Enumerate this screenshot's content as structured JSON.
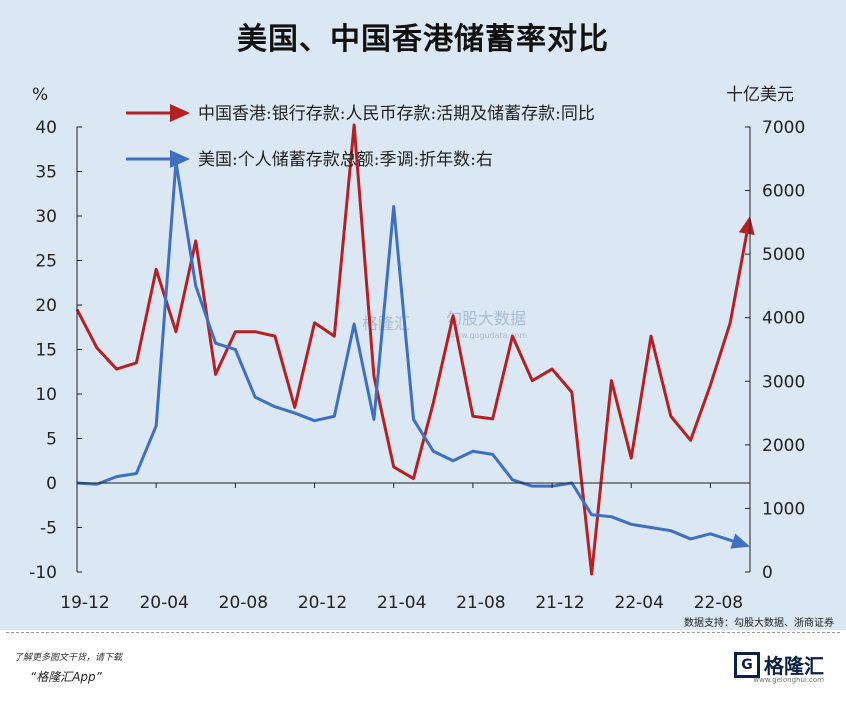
{
  "title": "美国、中国香港储蓄率对比",
  "watermark": {
    "left": "格隆汇",
    "right": "勾股大数据",
    "right_sub": "www.gogudata.com"
  },
  "source_note": "数据支持：勾股大数据、浙商证券",
  "footer": {
    "note": "了解更多图文干货，请下载",
    "app": "“格隆汇App”",
    "brand": "格隆汇",
    "brand_mark": "G",
    "brand_sub": "www.gelonghui.com"
  },
  "colors": {
    "hk": "#b52025",
    "us": "#3f6fbf",
    "background": "#dbe8f3"
  },
  "chart_data": {
    "type": "line",
    "left_axis_label": "%",
    "right_axis_label": "十亿美元",
    "y_left_lim": [
      -10,
      40
    ],
    "y_left_ticks": [
      "-10",
      "-5",
      "0",
      "5",
      "10",
      "15",
      "20",
      "25",
      "30",
      "35",
      "40"
    ],
    "y_right_lim": [
      0,
      7000
    ],
    "y_right_ticks": [
      "0",
      "1000",
      "2000",
      "3000",
      "4000",
      "5000",
      "6000",
      "7000"
    ],
    "x_ticks": [
      "19-12",
      "20-04",
      "20-08",
      "20-12",
      "21-04",
      "21-08",
      "21-12",
      "22-04",
      "22-08"
    ],
    "x": [
      "19-12",
      "20-01",
      "20-02",
      "20-03",
      "20-04",
      "20-05",
      "20-06",
      "20-07",
      "20-08",
      "20-09",
      "20-10",
      "20-11",
      "20-12",
      "21-01",
      "21-02",
      "21-03",
      "21-04",
      "21-05",
      "21-06",
      "21-07",
      "21-08",
      "21-09",
      "21-10",
      "21-11",
      "21-12",
      "22-01",
      "22-02",
      "22-03",
      "22-04",
      "22-05",
      "22-06",
      "22-07",
      "22-08",
      "22-09",
      "22-10"
    ],
    "series": [
      {
        "name": "中国香港:银行存款:人民币存款:活期及储蓄存款:同比",
        "axis": "left",
        "values": [
          19.5,
          15.2,
          12.8,
          13.5,
          24.0,
          17.0,
          27.2,
          12.2,
          17.0,
          17.0,
          16.5,
          8.5,
          18.0,
          16.5,
          41.0,
          12.0,
          1.8,
          0.5,
          9.0,
          18.8,
          7.5,
          7.2,
          16.5,
          11.5,
          12.8,
          10.2,
          -10.5,
          11.5,
          2.8,
          16.5,
          7.5,
          4.8,
          11.0,
          18.0,
          30.0
        ]
      },
      {
        "name": "美国:个人储蓄存款总额:季调:折年数:右",
        "axis": "right",
        "values": [
          1400,
          1380,
          1500,
          1550,
          2300,
          6450,
          4500,
          3600,
          3500,
          2750,
          2600,
          2500,
          2380,
          2450,
          3900,
          2400,
          5750,
          2400,
          1900,
          1750,
          1900,
          1850,
          1450,
          1350,
          1350,
          1400,
          900,
          870,
          750,
          700,
          650,
          520,
          600,
          500,
          400
        ]
      }
    ]
  }
}
